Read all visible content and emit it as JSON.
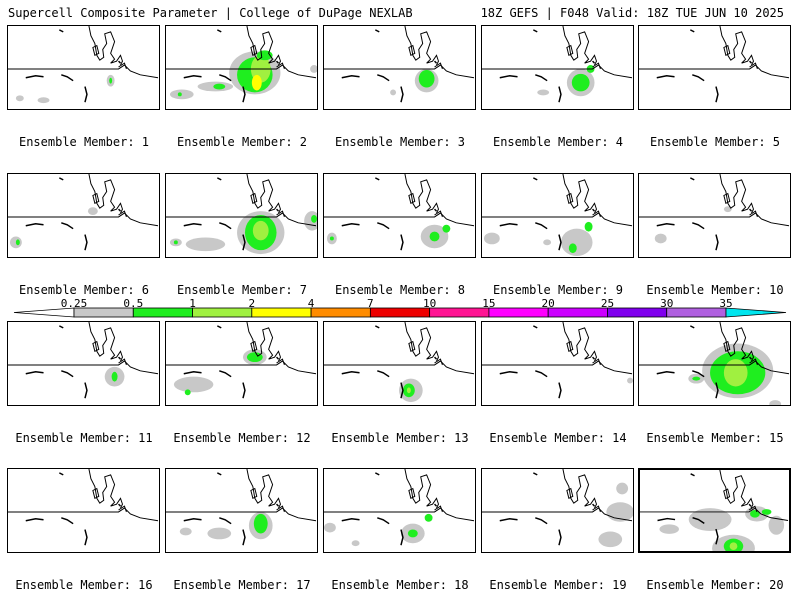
{
  "header": {
    "left": "Supercell Composite Parameter | College of DuPage NEXLAB",
    "right": "18Z GEFS | F048 Valid: 18Z TUE JUN 10 2025"
  },
  "label_prefix": "Ensemble Member: ",
  "panels": [
    {
      "member": "1"
    },
    {
      "member": "2"
    },
    {
      "member": "3"
    },
    {
      "member": "4"
    },
    {
      "member": "5"
    },
    {
      "member": "6"
    },
    {
      "member": "7"
    },
    {
      "member": "8"
    },
    {
      "member": "9"
    },
    {
      "member": "10"
    },
    {
      "member": "11"
    },
    {
      "member": "12"
    },
    {
      "member": "13"
    },
    {
      "member": "14"
    },
    {
      "member": "15"
    },
    {
      "member": "16"
    },
    {
      "member": "17"
    },
    {
      "member": "18"
    },
    {
      "member": "19"
    },
    {
      "member": "20"
    }
  ],
  "colorbar": {
    "labels": [
      "0.25",
      "0.5",
      "1",
      "2",
      "4",
      "7",
      "10",
      "15",
      "20",
      "25",
      "30",
      "35"
    ],
    "colors": [
      "#ffffff",
      "#c8c8c8",
      "#1fee1f",
      "#a0f040",
      "#ffff00",
      "#ff8c00",
      "#ee0000",
      "#ff1493",
      "#ff00ff",
      "#cc00ff",
      "#8000ee",
      "#b060e0",
      "#00e5ee"
    ]
  },
  "colors": {
    "low": "#c8c8c8",
    "green": "#1fee1f",
    "lightgreen": "#a0f040",
    "yellow": "#ffff00"
  }
}
